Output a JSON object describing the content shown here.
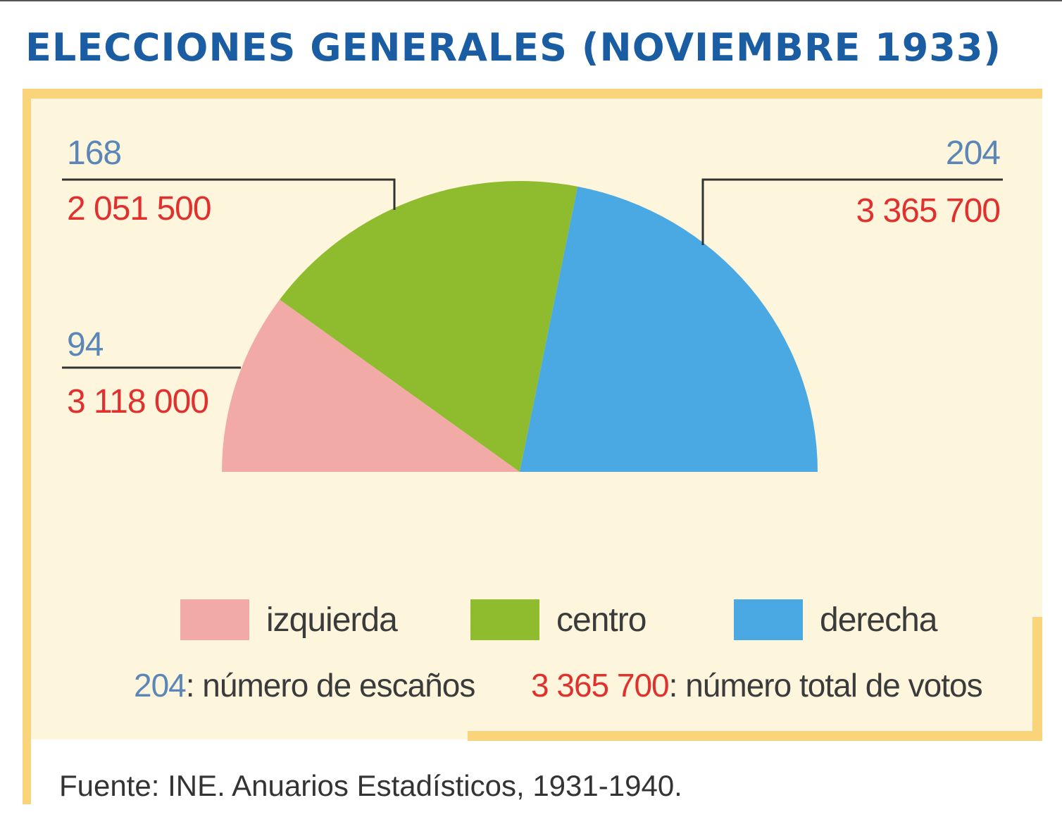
{
  "title": "ELECCIONES GENERALES (NOVIEMBRE 1933)",
  "source": "Fuente: INE. Anuarios Estadísticos, 1931-1940.",
  "colors": {
    "title": "#1a5da3",
    "seats_text": "#5b86b8",
    "votes_text": "#e0312f",
    "panel_background": "#fdf5dc",
    "frame": "#f9d47a"
  },
  "key": {
    "seats_example": "204",
    "seats_text": ": número de escaños",
    "votes_example": "3 365 700",
    "votes_text": ": número total de votos"
  },
  "chart_data": {
    "type": "pie",
    "subtype": "half-pie (parliament)",
    "title": "ELECCIONES GENERALES (NOVIEMBRE 1933)",
    "legend_position": "bottom",
    "categories": [
      "izquierda",
      "centro",
      "derecha"
    ],
    "colors": [
      "#f2aaa6",
      "#8fbb2f",
      "#4aa8e2"
    ],
    "series": [
      {
        "name": "número de escaños",
        "values": [
          94,
          168,
          204
        ]
      },
      {
        "name": "número total de votos",
        "values": [
          3118000,
          2051500,
          3365700
        ]
      }
    ],
    "labels": [
      {
        "category": "izquierda",
        "seats": "94",
        "votes": "3 118 000"
      },
      {
        "category": "centro",
        "seats": "168",
        "votes": "2 051 500"
      },
      {
        "category": "derecha",
        "seats": "204",
        "votes": "3 365 700"
      }
    ]
  }
}
